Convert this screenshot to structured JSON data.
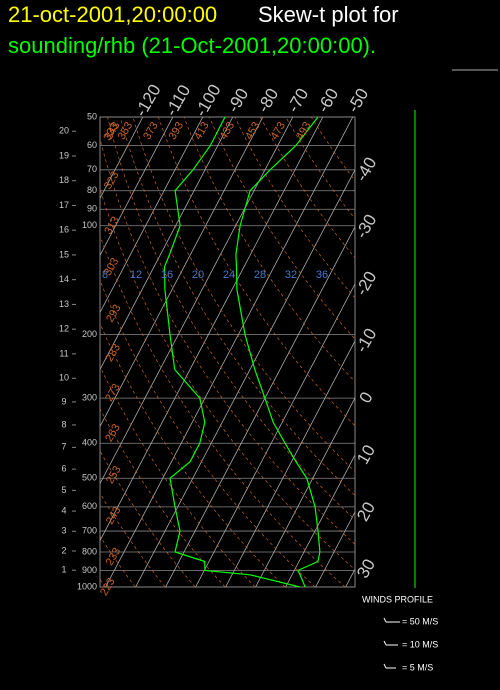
{
  "chart_data": {
    "type": "skew-t",
    "title_time": "21-oct-2001,20:00:00",
    "title_text": "Skew-t plot for",
    "subtitle": "sounding/rhb (21-Oct-2001,20:00:00).",
    "title_time_color": "#ffff00",
    "title_text_color": "#ffffff",
    "subtitle_color": "#00ff00",
    "log_scale": true,
    "grid": true,
    "ylim": [
      1000,
      50
    ],
    "yticks": [
      50,
      60,
      70,
      80,
      90,
      100,
      200,
      300,
      400,
      500,
      600,
      700,
      800,
      900,
      1000
    ],
    "height_ticks": [
      1,
      2,
      3,
      4,
      5,
      6,
      7,
      8,
      9,
      10,
      11,
      12,
      13,
      14,
      15,
      16,
      17,
      18,
      19,
      20
    ],
    "isotherms": [
      -120,
      -110,
      -100,
      -90,
      -80,
      -70,
      -60,
      -50,
      -40,
      -30,
      -20,
      -10,
      0,
      10,
      20,
      30
    ],
    "dry_adiabats": [
      223,
      233,
      243,
      253,
      263,
      273,
      283,
      293,
      303,
      313,
      323,
      333,
      343,
      353,
      373,
      393,
      413,
      433,
      453,
      473,
      493
    ],
    "mixing_ratio_labels": [
      8,
      12,
      16,
      20,
      24,
      28,
      32,
      36
    ],
    "pressure": [
      1000,
      925,
      900,
      850,
      800,
      700,
      600,
      500,
      450,
      400,
      350,
      300,
      250,
      200,
      150,
      130,
      120,
      100,
      80,
      70,
      60,
      50
    ],
    "series": [
      {
        "color": "#00ff00",
        "values": [
          16.5,
          12.7,
          11.2,
          16.3,
          15.3,
          11,
          5.8,
          -2,
          -8.5,
          -15.4,
          -23,
          -30,
          -38.4,
          -47.8,
          -58.4,
          -62.5,
          -64.9,
          -68.5,
          -71.3,
          -68.3,
          -64,
          -61.6
        ]
      },
      {
        "color": "#00ff00",
        "values": [
          14.8,
          -4,
          -19.8,
          -21.4,
          -33,
          -35,
          -40.9,
          -47.6,
          -43.8,
          -43.8,
          -45.8,
          -51.7,
          -65.1,
          -72.8,
          -82.4,
          -86.5,
          -87,
          -88.5,
          -96.3,
          -94,
          -92.5,
          -92.6
        ]
      }
    ],
    "wind_title": "WINDS PROFILE",
    "wind_legend": [
      "= 50 M/S",
      "= 10 M/S",
      "= 5 M/S"
    ]
  }
}
